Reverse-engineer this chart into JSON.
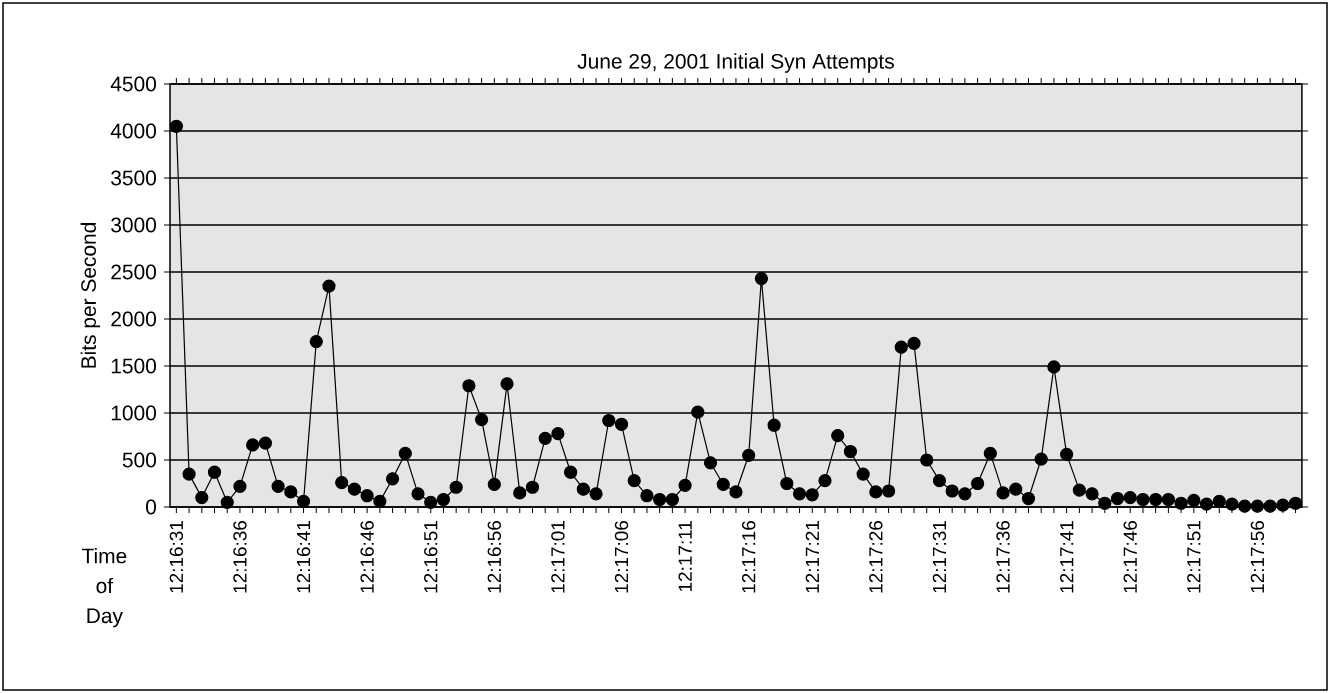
{
  "chart_data": {
    "type": "line",
    "title": "June 29, 2001 Initial Syn Attempts",
    "xlabel": "Time of Day",
    "ylabel": "Bits per Second",
    "categories": [
      "12:16:31",
      null,
      null,
      null,
      null,
      "12:16:36",
      null,
      null,
      null,
      null,
      "12:16:41",
      null,
      null,
      null,
      null,
      "12:16:46",
      null,
      null,
      null,
      null,
      "12:16:51",
      null,
      null,
      null,
      null,
      "12:16:56",
      null,
      null,
      null,
      null,
      "12:17:01",
      null,
      null,
      null,
      null,
      "12:17:06",
      null,
      null,
      null,
      null,
      "12:17:11",
      null,
      null,
      null,
      null,
      "12:17:16",
      null,
      null,
      null,
      null,
      "12:17:21",
      null,
      null,
      null,
      null,
      "12:17:26",
      null,
      null,
      null,
      null,
      "12:17:31",
      null,
      null,
      null,
      null,
      "12:17:36",
      null,
      null,
      null,
      null,
      "12:17:41",
      null,
      null,
      null,
      null,
      "12:17:46",
      null,
      null,
      null,
      null,
      "12:17:51",
      null,
      null,
      null,
      null,
      "12:17:56",
      null,
      null,
      null
    ],
    "values": [
      4050,
      350,
      100,
      370,
      50,
      220,
      660,
      680,
      220,
      160,
      60,
      1760,
      2350,
      260,
      190,
      120,
      60,
      300,
      570,
      140,
      50,
      80,
      210,
      1290,
      930,
      240,
      1310,
      150,
      210,
      730,
      780,
      370,
      190,
      140,
      920,
      880,
      280,
      120,
      80,
      80,
      230,
      1010,
      470,
      240,
      160,
      550,
      2430,
      870,
      250,
      140,
      130,
      280,
      760,
      590,
      350,
      160,
      170,
      1700,
      1740,
      500,
      280,
      170,
      140,
      250,
      570,
      150,
      190,
      90,
      510,
      1490,
      560,
      180,
      140,
      40,
      90,
      100,
      80,
      80,
      80,
      40,
      70,
      30,
      60,
      30,
      10,
      10,
      10,
      20,
      40
    ],
    "color": "#000000",
    "marker": "circle",
    "line_style": "solid",
    "ylim": [
      0,
      4500
    ],
    "yticks": [
      0,
      500,
      1000,
      1500,
      2000,
      2500,
      3000,
      3500,
      4000,
      4500
    ],
    "grid": "y"
  }
}
